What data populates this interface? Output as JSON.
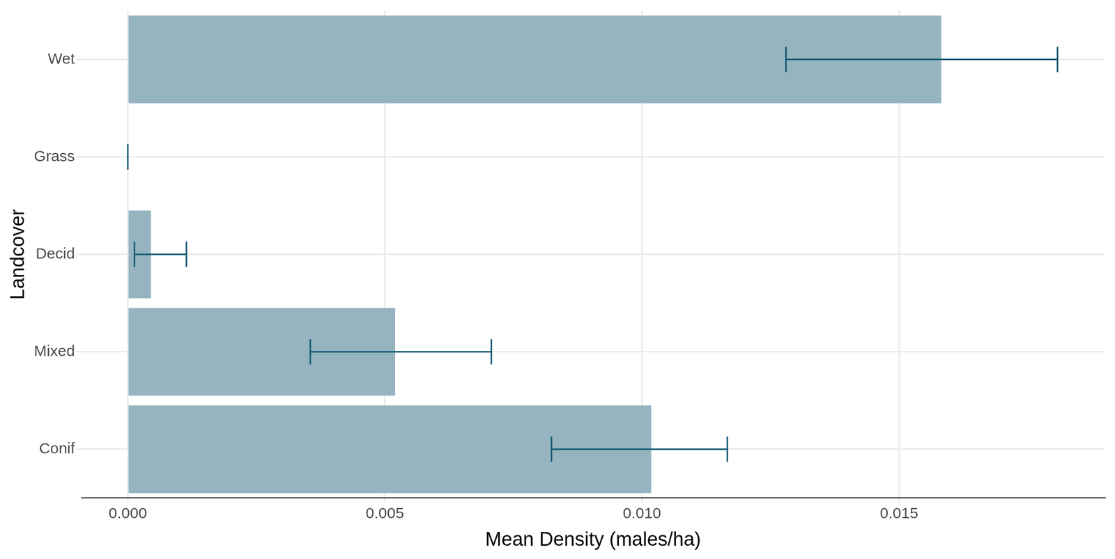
{
  "chart_data": {
    "type": "bar",
    "orientation": "horizontal",
    "x_label": "Mean Density (males/ha)",
    "y_label": "Landcover",
    "categories": [
      "Wet",
      "Grass",
      "Decid",
      "Mixed",
      "Conif"
    ],
    "values": [
      0.01582,
      0,
      0.00045,
      0.0052,
      0.01018
    ],
    "error_low": [
      0.0128,
      0,
      0.00013,
      0.00355,
      0.00824
    ],
    "error_high": [
      0.01808,
      0,
      0.00114,
      0.00707,
      0.01166
    ],
    "color": "#96b4bf",
    "xlim": [
      -0.0009,
      0.019
    ],
    "xticks": [
      {
        "value": 0,
        "label": "0.000"
      },
      {
        "value": 0.005,
        "label": "0.005"
      },
      {
        "value": 0.01,
        "label": "0.010"
      },
      {
        "value": 0.015,
        "label": "0.015"
      }
    ],
    "grid": true
  }
}
